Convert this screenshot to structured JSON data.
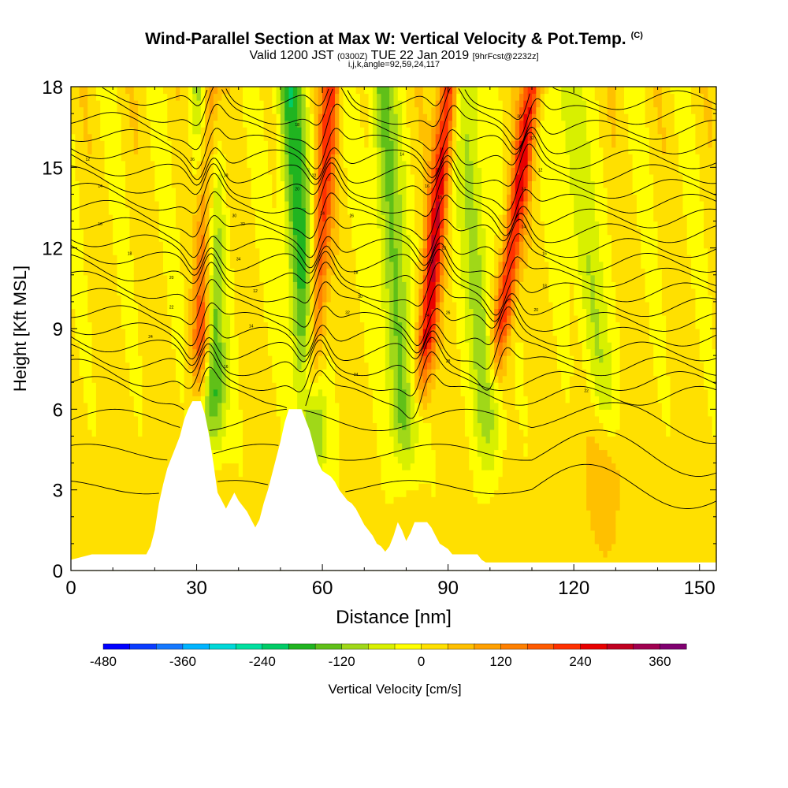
{
  "title": {
    "main": "Wind-Parallel Section at Max W: Vertical Velocity & Pot.Temp.",
    "copyright": "(C)",
    "valid_prefix": "Valid 1200 JST",
    "valid_utc": "(0300Z)",
    "valid_date": "TUE 22 Jan 2019",
    "forecast": "[9hrFcst@2232z]",
    "indices": "i,j,k,angle=92,59,24,117"
  },
  "chart_data": {
    "type": "heatmap",
    "xlabel": "Distance [nm]",
    "ylabel": "Height [Kft MSL]",
    "xlim": [
      0,
      154
    ],
    "ylim": [
      0,
      18
    ],
    "x_ticks": [
      "0",
      "30",
      "60",
      "90",
      "120",
      "150"
    ],
    "x_tick_values": [
      0,
      30,
      60,
      90,
      120,
      150
    ],
    "y_ticks": [
      "0",
      "3",
      "6",
      "9",
      "12",
      "15",
      "18"
    ],
    "y_tick_values": [
      0,
      3,
      6,
      9,
      12,
      15,
      18
    ],
    "grid": false,
    "colorbar": {
      "label": "Vertical Velocity [cm/s]",
      "range": [
        -480,
        400
      ],
      "step": 40,
      "tick_labels": [
        "-480",
        "-360",
        "-240",
        "-120",
        "0",
        "120",
        "240",
        "360"
      ],
      "tick_values": [
        -480,
        -360,
        -240,
        -120,
        0,
        120,
        240,
        360
      ],
      "colors": [
        "#0000ff",
        "#0a3cff",
        "#1478ff",
        "#00b4ff",
        "#00d8d8",
        "#00e0a0",
        "#00cc66",
        "#20b420",
        "#60c018",
        "#a0d818",
        "#d8f000",
        "#ffff00",
        "#ffe000",
        "#ffc000",
        "#ffa000",
        "#ff8000",
        "#ff5a00",
        "#ff3000",
        "#e80000",
        "#c00020",
        "#a00050",
        "#800070"
      ]
    },
    "terrain_top_kft": [
      [
        0,
        0.4
      ],
      [
        5,
        0.6
      ],
      [
        8,
        0.6
      ],
      [
        12,
        0.6
      ],
      [
        18,
        0.6
      ],
      [
        19,
        0.9
      ],
      [
        20,
        1.5
      ],
      [
        21,
        2.5
      ],
      [
        22,
        3.2
      ],
      [
        23,
        3.8
      ],
      [
        24,
        4.2
      ],
      [
        25,
        4.6
      ],
      [
        26,
        5.0
      ],
      [
        27,
        5.6
      ],
      [
        28,
        6.0
      ],
      [
        29,
        6.3
      ],
      [
        31,
        6.3
      ],
      [
        32,
        5.8
      ],
      [
        33,
        5.0
      ],
      [
        34,
        4.0
      ],
      [
        35,
        2.9
      ],
      [
        36,
        2.6
      ],
      [
        37,
        2.3
      ],
      [
        38,
        2.6
      ],
      [
        39,
        2.9
      ],
      [
        40,
        2.6
      ],
      [
        41,
        2.4
      ],
      [
        42,
        2.2
      ],
      [
        43,
        1.9
      ],
      [
        44,
        1.6
      ],
      [
        45,
        1.9
      ],
      [
        46,
        2.5
      ],
      [
        47,
        3.0
      ],
      [
        48,
        3.6
      ],
      [
        49,
        4.2
      ],
      [
        50,
        4.8
      ],
      [
        51,
        5.5
      ],
      [
        52,
        6.0
      ],
      [
        55,
        6.0
      ],
      [
        56,
        5.6
      ],
      [
        57,
        5.2
      ],
      [
        58,
        4.6
      ],
      [
        59,
        4.0
      ],
      [
        60,
        3.7
      ],
      [
        62,
        3.5
      ],
      [
        63,
        3.3
      ],
      [
        64,
        3.0
      ],
      [
        65,
        2.8
      ],
      [
        66,
        2.6
      ],
      [
        67,
        2.5
      ],
      [
        68,
        2.3
      ],
      [
        69,
        2.0
      ],
      [
        70,
        1.7
      ],
      [
        71,
        1.5
      ],
      [
        72,
        1.3
      ],
      [
        73,
        1.0
      ],
      [
        74,
        0.9
      ],
      [
        75,
        0.7
      ],
      [
        76,
        0.9
      ],
      [
        77,
        1.3
      ],
      [
        78,
        1.8
      ],
      [
        79,
        1.5
      ],
      [
        80,
        1.1
      ],
      [
        81,
        1.4
      ],
      [
        82,
        1.8
      ],
      [
        85,
        1.8
      ],
      [
        86,
        1.6
      ],
      [
        87,
        1.3
      ],
      [
        88,
        1.0
      ],
      [
        89,
        0.9
      ],
      [
        90,
        0.8
      ],
      [
        91,
        0.6
      ],
      [
        97,
        0.6
      ],
      [
        98,
        0.4
      ],
      [
        99,
        0.3
      ],
      [
        154,
        0.3
      ]
    ],
    "updraft_bands": [
      {
        "base": [
          31,
          7.0
        ],
        "top": [
          33,
          18
        ],
        "peak_cm_s": 280
      },
      {
        "base": [
          57,
          6.0
        ],
        "top": [
          62,
          18
        ],
        "peak_cm_s": 200
      },
      {
        "base": [
          84,
          7.0
        ],
        "top": [
          90,
          18
        ],
        "peak_cm_s": 260
      },
      {
        "base": [
          102,
          8.0
        ],
        "top": [
          110,
          18
        ],
        "peak_cm_s": 240
      }
    ],
    "downdraft_bands": [
      {
        "base": [
          34,
          5.0
        ],
        "top": [
          32,
          18
        ],
        "peak_cm_s": -200
      },
      {
        "base": [
          58,
          4.0
        ],
        "top": [
          52,
          18
        ],
        "peak_cm_s": -200
      },
      {
        "base": [
          80,
          4.0
        ],
        "top": [
          74,
          18
        ],
        "peak_cm_s": -150
      },
      {
        "base": [
          100,
          4.0
        ],
        "top": [
          94,
          18
        ],
        "peak_cm_s": -120
      },
      {
        "base": [
          128,
          5.0
        ],
        "top": [
          118,
          18
        ],
        "peak_cm_s": -100
      }
    ],
    "contour_field": "Potential temperature (K)",
    "contour_labels": [
      "12",
      "14",
      "16",
      "18",
      "20",
      "22",
      "24",
      "26",
      "28",
      "30",
      "32",
      "34"
    ]
  },
  "colors": {
    "background": "#ffffff",
    "terrain": "#ffffff",
    "contour": "#000000"
  }
}
